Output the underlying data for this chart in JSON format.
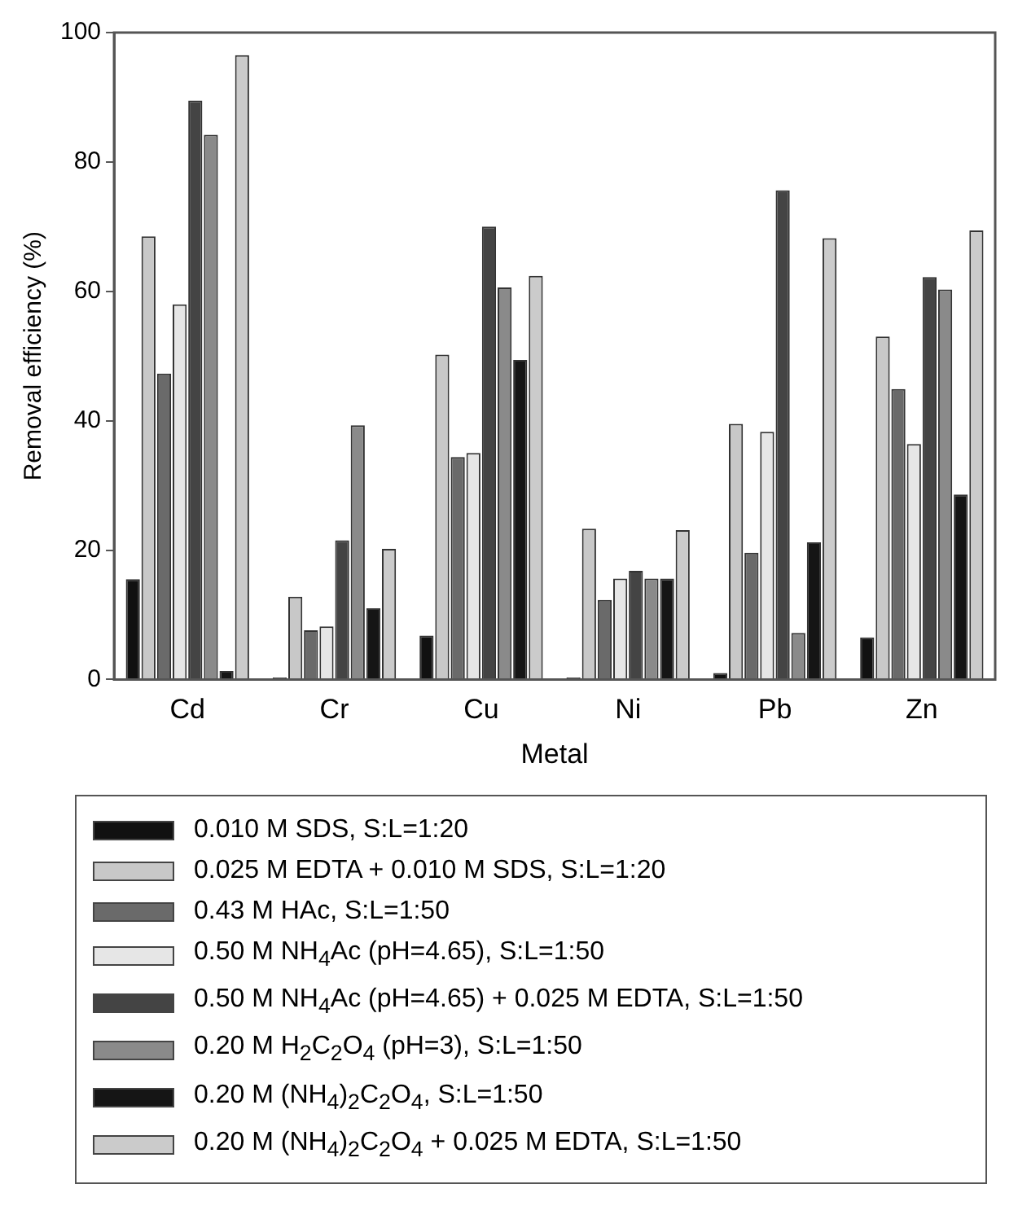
{
  "chart_data": {
    "type": "bar",
    "xlabel": "Metal",
    "ylabel": "Removal efficiency (%)",
    "categories": [
      "Cd",
      "Cr",
      "Cu",
      "Ni",
      "Pb",
      "Zn"
    ],
    "series": [
      {
        "name": "0.010 M SDS, S:L=1:20",
        "color": "#111111",
        "values": [
          15.5,
          0.3,
          6.8,
          0.3,
          1,
          6.5
        ]
      },
      {
        "name": "0.025 M EDTA + 0.010 M SDS, S:L=1:20",
        "color": "#c8c8c8",
        "values": [
          68.5,
          12.8,
          50.2,
          23.3,
          39.5,
          53
        ]
      },
      {
        "name": "0.43 M HAc, S:L=1:50",
        "color": "#6a6a6a",
        "values": [
          47.3,
          7.6,
          34.4,
          12.3,
          19.6,
          44.9
        ]
      },
      {
        "name": "0.50 M NH$_{4}$Ac (pH=4.65), S:L=1:50",
        "color": "#e6e6e6",
        "values": [
          58,
          8.2,
          35,
          15.6,
          38.3,
          36.4
        ]
      },
      {
        "name": "0.50 M NH$_{4}$Ac (pH=4.65) + 0.025 M EDTA, S:L=1:50",
        "color": "#444444",
        "values": [
          89.5,
          21.5,
          70,
          16.8,
          75.6,
          62.2
        ]
      },
      {
        "name": "0.20 M H$_{2}$C$_{2}$O$_{4}$ (pH=3), S:L=1:50",
        "color": "#8a8a8a",
        "values": [
          84.2,
          39.3,
          60.6,
          15.6,
          7.2,
          60.3
        ]
      },
      {
        "name": "0.20 M (NH$_{4}$)$_{2}$C$_{2}$O$_{4}$, S:L=1:50",
        "color": "#151515",
        "values": [
          1.3,
          11,
          49.4,
          15.6,
          21.2,
          28.6
        ]
      },
      {
        "name": "0.20 M (NH$_{4}$)$_{2}$C$_{2}$O$_{4}$ + 0.025 M EDTA, S:L=1:50",
        "color": "#cbcbcb",
        "values": [
          96.5,
          20.2,
          62.4,
          23.1,
          68.2,
          69.4
        ]
      }
    ],
    "ylim": [
      0,
      100
    ],
    "yticks": [
      0,
      20,
      40,
      60,
      80,
      100
    ],
    "grid": false,
    "legend": "bottom"
  }
}
